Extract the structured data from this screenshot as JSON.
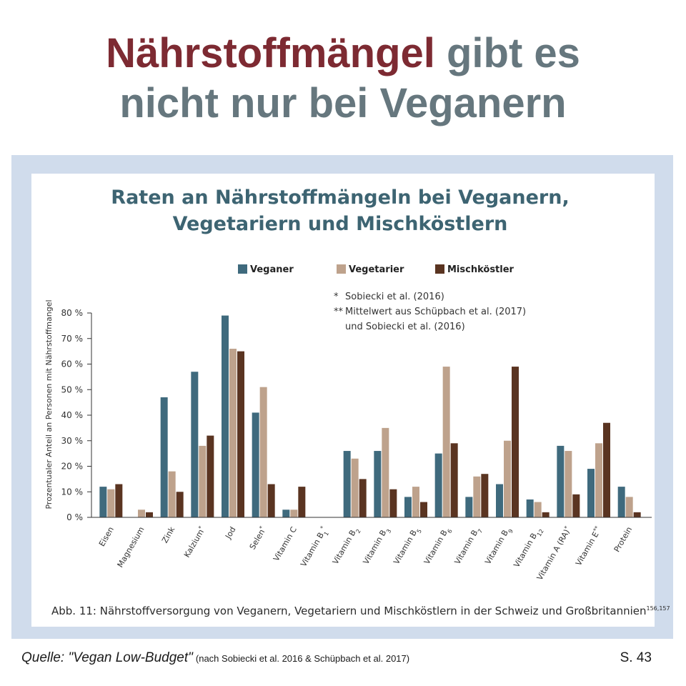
{
  "headline": {
    "accent": "Nährstoffmängel",
    "rest_line1": " gibt es",
    "line2": "nicht nur bei Veganern"
  },
  "chart_data": {
    "type": "bar",
    "title_lines": [
      "Raten an Nährstoffmängeln bei Veganern,",
      "Vegetariern und Mischköstlern"
    ],
    "ylabel": "Prozentualer Anteil an Personen mit Nährstoffmangel",
    "ylim": [
      0,
      80
    ],
    "yticks": [
      "0 %",
      "10 %",
      "20 %",
      "30 %",
      "40 %",
      "50 %",
      "60 %",
      "70 %",
      "80 %"
    ],
    "grid": false,
    "legend_position": "top",
    "categories": [
      {
        "base": "Eisen",
        "sub": "",
        "mark": ""
      },
      {
        "base": "Magnesium",
        "sub": "",
        "mark": ""
      },
      {
        "base": "Zink",
        "sub": "",
        "mark": ""
      },
      {
        "base": "Kalzium",
        "sub": "",
        "mark": "*"
      },
      {
        "base": "Jod",
        "sub": "",
        "mark": ""
      },
      {
        "base": "Selen",
        "sub": "",
        "mark": "*"
      },
      {
        "base": "Vitamin C",
        "sub": "",
        "mark": ""
      },
      {
        "base": "Vitamin B",
        "sub": "1",
        "mark": "*"
      },
      {
        "base": "Vitamin B",
        "sub": "2",
        "mark": ""
      },
      {
        "base": "Vitamin B",
        "sub": "3",
        "mark": ""
      },
      {
        "base": "Vitamin B",
        "sub": "5",
        "mark": ""
      },
      {
        "base": "Vitamin B",
        "sub": "6",
        "mark": ""
      },
      {
        "base": "Vitamin B",
        "sub": "7",
        "mark": ""
      },
      {
        "base": "Vitamin B",
        "sub": "9",
        "mark": ""
      },
      {
        "base": "Vitamin B",
        "sub": "12",
        "mark": ""
      },
      {
        "base": "Vitamin A (RA)",
        "sub": "",
        "mark": "*"
      },
      {
        "base": "Vitamin E",
        "sub": "",
        "mark": "**"
      },
      {
        "base": "Protein",
        "sub": "",
        "mark": ""
      }
    ],
    "series": [
      {
        "name": "Veganer",
        "color": "#3f6a7d",
        "values": [
          12,
          0,
          47,
          57,
          79,
          41,
          3,
          0,
          26,
          26,
          8,
          25,
          8,
          13,
          7,
          28,
          19,
          12
        ]
      },
      {
        "name": "Vegetarier",
        "color": "#bea28c",
        "values": [
          11,
          3,
          18,
          28,
          66,
          51,
          3,
          0,
          23,
          35,
          12,
          59,
          16,
          30,
          6,
          26,
          29,
          8
        ]
      },
      {
        "name": "Mischköstler",
        "color": "#5a3421",
        "values": [
          13,
          2,
          10,
          32,
          65,
          13,
          12,
          0,
          15,
          11,
          6,
          29,
          17,
          59,
          2,
          9,
          37,
          2
        ]
      }
    ],
    "footnotes": [
      {
        "mark": "*",
        "text": "Sobiecki et al. (2016)"
      },
      {
        "mark": "**",
        "text": "Mittelwert aus Schüpbach et al. (2017)"
      },
      {
        "mark": "",
        "text": "und Sobiecki et al. (2016)"
      }
    ]
  },
  "caption": {
    "text": "Abb. 11: Nährstoffversorgung von Veganern, Vegetariern und Mischköstlern in der Schweiz und Großbritannien",
    "refs": "156,157"
  },
  "footer": {
    "source_title": "Quelle: \"Vegan Low-Budget\"",
    "source_note": "(nach Sobiecki et al. 2016 & Schüpbach et al. 2017)",
    "page": "S. 43"
  },
  "colors": {
    "accent": "#7d2a32",
    "headline": "#66777e",
    "chart_title": "#3d6472",
    "frame": "#d0dcec"
  }
}
